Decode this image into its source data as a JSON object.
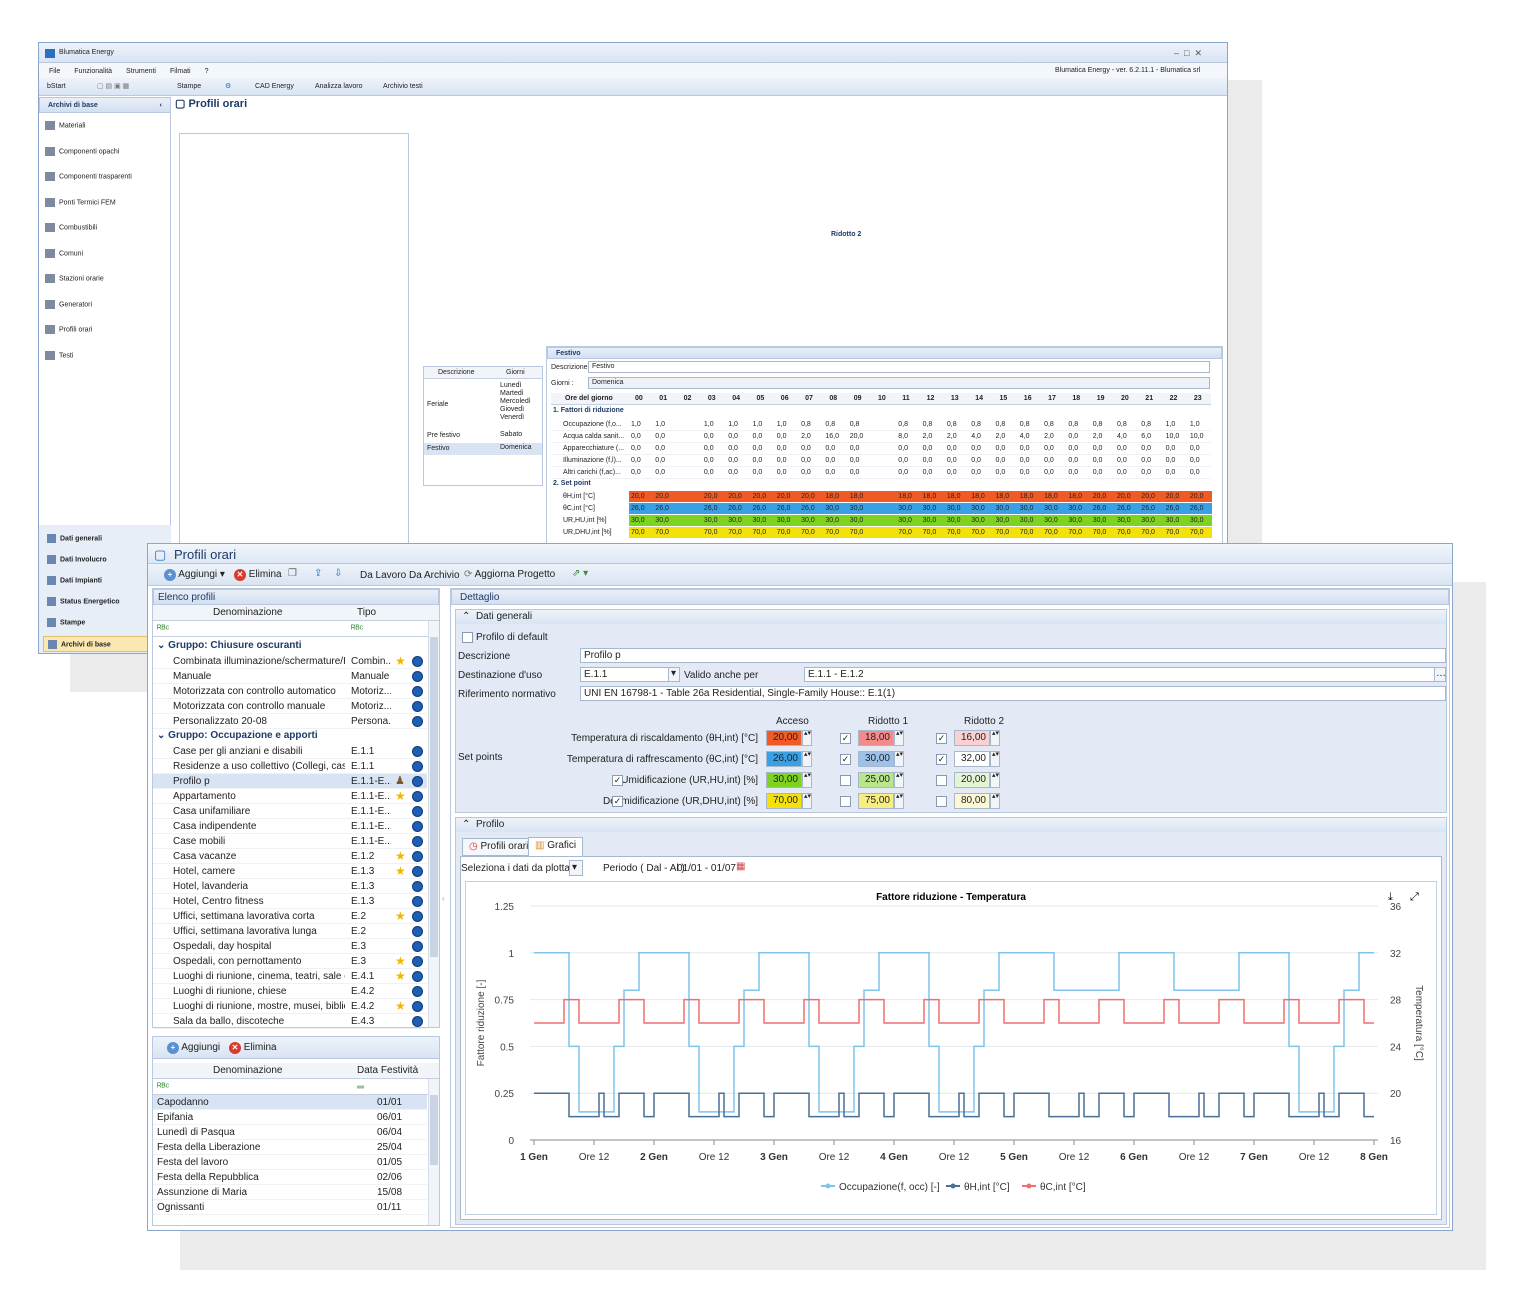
{
  "back": {
    "title": "Blumatica Energy",
    "menu": [
      "File",
      "Funzionalità",
      "Strumenti",
      "Filmati",
      "?"
    ],
    "version": "Blumatica Energy - ver. 6.2.11.1 - Blumatica srl",
    "tb": {
      "bstart": "bStart",
      "stampe": "Stampe",
      "cad": "CAD Energy",
      "analizza": "Analizza lavoro",
      "archivio": "Archivio testi"
    },
    "sidebar": {
      "title": "Archivi di base",
      "items": [
        "Materiali",
        "Componenti opachi",
        "Componenti trasparenti",
        "Ponti Termici FEM",
        "Combustibili",
        "Comuni",
        "Stazioni orarie",
        "Generatori",
        "Profili orari",
        "Testi"
      ],
      "bottom": [
        "Dati generali",
        "Dati Involucro",
        "Dati Impianti",
        "Status Energetico",
        "Stampe",
        "Archivi di base"
      ]
    },
    "detail": {
      "ridotto2_label": "Ridotto 2",
      "festivo_title": "Festivo",
      "descr_label": "Descrizione",
      "descr_value": "Festivo",
      "giorni_label": "Giorni :",
      "giorni_value": "Domenica",
      "days_header": [
        "Descrizione",
        "Giorni"
      ],
      "days": [
        [
          "Feriale",
          "Lunedì\nMartedì\nMercoledì\nGiovedì\nVenerdì"
        ],
        [
          "Pre festivo",
          "Sabato"
        ],
        [
          "Festivo",
          "Domenica"
        ]
      ],
      "ore_label": "Ore del giorno",
      "hours": [
        "00",
        "01",
        "02",
        "03",
        "04",
        "05",
        "06",
        "07",
        "08",
        "09",
        "10",
        "11",
        "12",
        "13",
        "14",
        "15",
        "16",
        "17",
        "18",
        "19",
        "20",
        "21",
        "22",
        "23"
      ],
      "g1": "1. Fattori di riduzione",
      "g2": "2. Set point",
      "rows1": [
        {
          "n": "Occupazione (f,o...",
          "v": [
            "1,0",
            "1,0",
            "",
            "1,0",
            "1,0",
            "1,0",
            "1,0",
            "0,8",
            "0,8",
            "0,8",
            "",
            "0,8",
            "0,8",
            "0,8",
            "0,8",
            "0,8",
            "0,8",
            "0,8",
            "0,8",
            "0,8",
            "0,8",
            "0,8",
            "1,0",
            "1,0"
          ]
        },
        {
          "n": "Acqua calda sanit...",
          "v": [
            "0,0",
            "0,0",
            "",
            "0,0",
            "0,0",
            "0,0",
            "0,0",
            "2,0",
            "16,0",
            "20,0",
            "",
            "8,0",
            "2,0",
            "2,0",
            "4,0",
            "2,0",
            "4,0",
            "2,0",
            "0,0",
            "2,0",
            "4,0",
            "6,0",
            "10,0",
            "10,0"
          ]
        },
        {
          "n": "Apparecchiature (...",
          "v": [
            "0,0",
            "0,0",
            "",
            "0,0",
            "0,0",
            "0,0",
            "0,0",
            "0,0",
            "0,0",
            "0,0",
            "",
            "0,0",
            "0,0",
            "0,0",
            "0,0",
            "0,0",
            "0,0",
            "0,0",
            "0,0",
            "0,0",
            "0,0",
            "0,0",
            "0,0",
            "0,0"
          ]
        },
        {
          "n": "Illuminazione (f,l)...",
          "v": [
            "0,0",
            "0,0",
            "",
            "0,0",
            "0,0",
            "0,0",
            "0,0",
            "0,0",
            "0,0",
            "0,0",
            "",
            "0,0",
            "0,0",
            "0,0",
            "0,0",
            "0,0",
            "0,0",
            "0,0",
            "0,0",
            "0,0",
            "0,0",
            "0,0",
            "0,0",
            "0,0"
          ]
        },
        {
          "n": "Altri carichi (f,ac)...",
          "v": [
            "0,0",
            "0,0",
            "",
            "0,0",
            "0,0",
            "0,0",
            "0,0",
            "0,0",
            "0,0",
            "0,0",
            "",
            "0,0",
            "0,0",
            "0,0",
            "0,0",
            "0,0",
            "0,0",
            "0,0",
            "0,0",
            "0,0",
            "0,0",
            "0,0",
            "0,0",
            "0,0"
          ]
        }
      ],
      "rows2": [
        {
          "n": "θH,int [°C]",
          "c": "#f05a24",
          "v": [
            "20,0",
            "20,0",
            "",
            "20,0",
            "20,0",
            "20,0",
            "20,0",
            "20,0",
            "18,0",
            "18,0",
            "",
            "18,0",
            "18,0",
            "18,0",
            "18,0",
            "18,0",
            "18,0",
            "18,0",
            "18,0",
            "20,0",
            "20,0",
            "20,0",
            "20,0",
            "20,0"
          ]
        },
        {
          "n": "θC,int [°C]",
          "c": "#3aa0e6",
          "v": [
            "26,0",
            "26,0",
            "",
            "26,0",
            "26,0",
            "26,0",
            "26,0",
            "26,0",
            "30,0",
            "30,0",
            "",
            "30,0",
            "30,0",
            "30,0",
            "30,0",
            "30,0",
            "30,0",
            "30,0",
            "30,0",
            "26,0",
            "26,0",
            "26,0",
            "26,0",
            "26,0"
          ]
        },
        {
          "n": "UR,HU,int [%]",
          "c": "#7ed321",
          "v": [
            "30,0",
            "30,0",
            "",
            "30,0",
            "30,0",
            "30,0",
            "30,0",
            "30,0",
            "30,0",
            "30,0",
            "",
            "30,0",
            "30,0",
            "30,0",
            "30,0",
            "30,0",
            "30,0",
            "30,0",
            "30,0",
            "30,0",
            "30,0",
            "30,0",
            "30,0",
            "30,0"
          ]
        },
        {
          "n": "UR,DHU,int [%]",
          "c": "#f5e10a",
          "v": [
            "70,0",
            "70,0",
            "",
            "70,0",
            "70,0",
            "70,0",
            "70,0",
            "70,0",
            "70,0",
            "70,0",
            "",
            "70,0",
            "70,0",
            "70,0",
            "70,0",
            "70,0",
            "70,0",
            "70,0",
            "70,0",
            "70,0",
            "70,0",
            "70,0",
            "70,0",
            "70,0"
          ]
        }
      ]
    }
  },
  "front": {
    "title": "Profili orari",
    "toolbar": {
      "aggiungi": "Aggiungi",
      "elimina": "Elimina",
      "da_lavoro": "Da Lavoro",
      "da_archivio": "Da Archivio",
      "aggiorna": "Aggiorna Progetto"
    },
    "elenco": {
      "title": "Elenco profili",
      "col_den": "Denominazione",
      "col_tipo": "Tipo",
      "groups": [
        {
          "name": "Gruppo: Chiusure oscuranti",
          "rows": [
            [
              "Combinata illuminazione/schermature/HVAC",
              "Combin...",
              1
            ],
            [
              "Manuale",
              "Manuale",
              0
            ],
            [
              "Motorizzata con controllo automatico",
              "Motoriz...",
              0
            ],
            [
              "Motorizzata con controllo manuale",
              "Motoriz...",
              0
            ],
            [
              "Personalizzato 20-08",
              "Persona...",
              0
            ]
          ]
        },
        {
          "name": "Gruppo: Occupazione e apporti",
          "rows": [
            [
              "Case per gli anziani e disabili",
              "E.1.1",
              0
            ],
            [
              "Residenze a uso collettivo (Collegi, caserm...",
              "E.1.1",
              0
            ],
            [
              "Profilo p",
              "E.1.1-E...",
              2
            ],
            [
              "Appartamento",
              "E.1.1-E...",
              1
            ],
            [
              "Casa unifamiliare",
              "E.1.1-E...",
              0
            ],
            [
              "Casa indipendente",
              "E.1.1-E...",
              0
            ],
            [
              "Case mobili",
              "E.1.1-E...",
              0
            ],
            [
              "Casa vacanze",
              "E.1.2",
              1
            ],
            [
              "Hotel, camere",
              "E.1.3",
              1
            ],
            [
              "Hotel, lavanderia",
              "E.1.3",
              0
            ],
            [
              "Hotel, Centro fitness",
              "E.1.3",
              0
            ],
            [
              "Uffici, settimana lavorativa corta",
              "E.2",
              1
            ],
            [
              "Uffici, settimana lavorativa lunga",
              "E.2",
              0
            ],
            [
              "Ospedali, day hospital",
              "E.3",
              0
            ],
            [
              "Ospedali, con pernottamento",
              "E.3",
              1
            ],
            [
              "Luoghi di riunione, cinema, teatri, sale conf...",
              "E.4.1",
              1
            ],
            [
              "Luoghi di riunione, chiese",
              "E.4.2",
              0
            ],
            [
              "Luoghi di riunione, mostre, musei, biblioteche",
              "E.4.2",
              1
            ],
            [
              "Sala da ballo, discoteche",
              "E.4.3",
              0
            ]
          ]
        }
      ]
    },
    "fest": {
      "aggiungi": "Aggiungi",
      "elimina": "Elimina",
      "col_den": "Denominazione",
      "col_data": "Data Festività",
      "rows": [
        [
          "Capodanno",
          "01/01"
        ],
        [
          "Epifania",
          "06/01"
        ],
        [
          "Lunedì di Pasqua",
          "06/04"
        ],
        [
          "Festa della Liberazione",
          "25/04"
        ],
        [
          "Festa del lavoro",
          "01/05"
        ],
        [
          "Festa della Repubblica",
          "02/06"
        ],
        [
          "Assunzione di Maria",
          "15/08"
        ],
        [
          "Ognissanti",
          "01/11"
        ]
      ]
    },
    "detail": {
      "title": "Dettaglio",
      "dati_generali": "Dati generali",
      "profilo_default": "Profilo di default",
      "descr_label": "Descrizione",
      "descr_value": "Profilo p",
      "dest_label": "Destinazione d'uso",
      "dest_value": "E.1.1",
      "valido_label": "Valido anche per",
      "valido_value": "E.1.1 - E.1.2",
      "rif_label": "Riferimento normativo",
      "rif_value": "UNI EN 16798-1 - Table 26a Residential, Single-Family House:: E.1(1)",
      "setpoints_label": "Set points",
      "col_acceso": "Acceso",
      "col_rid1": "Ridotto 1",
      "col_rid2": "Ridotto 2",
      "sp": [
        {
          "label": "Temperatura di riscaldamento (θH,int) [°C]",
          "chk": null,
          "v": [
            "20,00",
            "18,00",
            "16,00"
          ],
          "c": [
            "#f05a24",
            "#f58a8a",
            "#fbd0d0"
          ],
          "c1": true,
          "c2": true
        },
        {
          "label": "Temperatura di raffrescamento (θC,int) [°C]",
          "chk": null,
          "v": [
            "26,00",
            "30,00",
            "32,00"
          ],
          "c": [
            "#3aa0e6",
            "#9cc2ea",
            "#ffffff"
          ],
          "c1": true,
          "c2": true
        },
        {
          "label": "Umidificazione (UR,HU,int) [%]",
          "chk": true,
          "v": [
            "30,00",
            "25,00",
            "20,00"
          ],
          "c": [
            "#7ed321",
            "#b8e68a",
            "#e4f5d4"
          ],
          "c1": false,
          "c2": false
        },
        {
          "label": "Deumidificazione (UR,DHU,int) [%]",
          "chk": true,
          "v": [
            "70,00",
            "75,00",
            "80,00"
          ],
          "c": [
            "#f5e10a",
            "#f8ee80",
            "#fdf8d4"
          ],
          "c1": false,
          "c2": false
        }
      ],
      "profilo": "Profilo",
      "tab1": "Profili orari",
      "tab2": "Grafici",
      "sel_label": "Seleziona i dati da plottare",
      "periodo_label": "Periodo ( Dal - Al )",
      "periodo_value": "01/01 - 01/07"
    },
    "chart_data": {
      "type": "line",
      "title": "Fattore riduzione - Temperatura",
      "ylabel": "Fattore riduzione [-]",
      "y2label": "Temperatura [°C]",
      "ylim": [
        0,
        1.25
      ],
      "y2lim": [
        16,
        36
      ],
      "yticks": [
        "0",
        "0.25",
        "0.5",
        "0.75",
        "1",
        "1.25"
      ],
      "y2ticks": [
        "16",
        "20",
        "24",
        "28",
        "32",
        "36"
      ],
      "xticks": [
        "1 Gen",
        "Ore 12",
        "2 Gen",
        "Ore 12",
        "3 Gen",
        "Ore 12",
        "4 Gen",
        "Ore 12",
        "5 Gen",
        "Ore 12",
        "6 Gen",
        "Ore 12",
        "7 Gen",
        "Ore 12",
        "8 Gen"
      ],
      "series": [
        {
          "name": "Occupazione(f, occ) [-]",
          "color": "#7fc4ea",
          "axis": "left",
          "days": [
            [
              0,
              1
            ],
            [
              8,
              0.5
            ],
            [
              9,
              0.15
            ],
            [
              14,
              0.5
            ],
            [
              17,
              0.8
            ],
            [
              21,
              1
            ]
          ],
          "pattern": "var"
        },
        {
          "name": "θH,int [°C]",
          "color": "#4a6f94",
          "axis": "right",
          "pattern": "h"
        },
        {
          "name": "θC,int [°C]",
          "color": "#ef6f6f",
          "axis": "right",
          "pattern": "c"
        }
      ]
    }
  }
}
